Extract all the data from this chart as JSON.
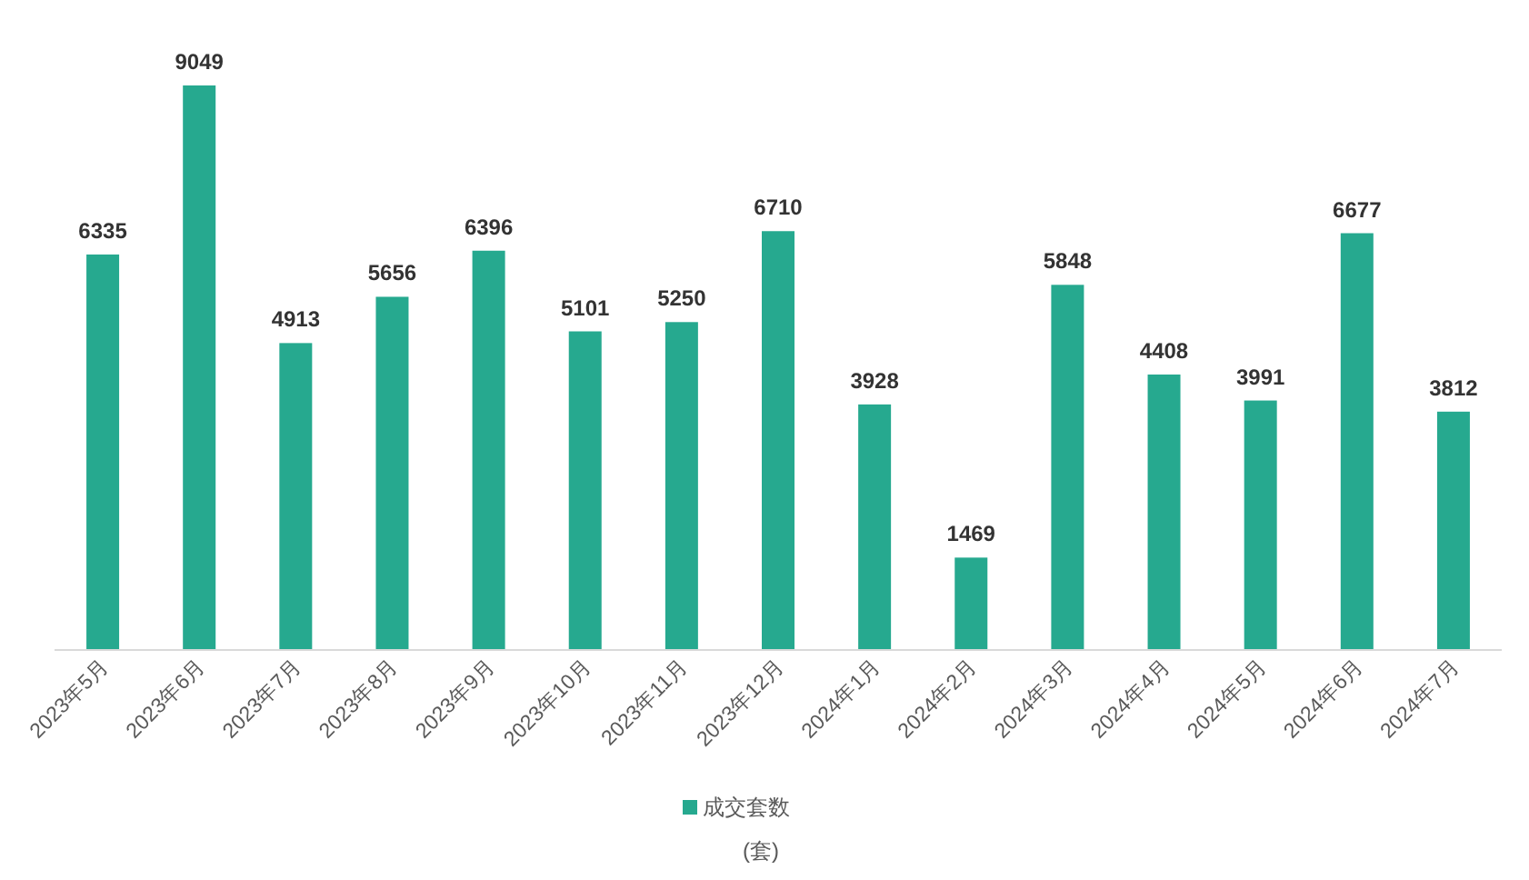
{
  "chart_data": {
    "type": "bar",
    "categories": [
      "2023年5月",
      "2023年6月",
      "2023年7月",
      "2023年8月",
      "2023年9月",
      "2023年10月",
      "2023年11月",
      "2023年12月",
      "2024年1月",
      "2024年2月",
      "2024年3月",
      "2024年4月",
      "2024年5月",
      "2024年6月",
      "2024年7月"
    ],
    "series": [
      {
        "name": "成交套数",
        "color": "#26a98f",
        "values": [
          6335,
          9049,
          4913,
          5656,
          6396,
          5101,
          5250,
          6710,
          3928,
          1469,
          5848,
          4408,
          3991,
          6677,
          3812
        ]
      }
    ],
    "data_labels": true,
    "legend": "bottom",
    "annotations": [
      "(套)"
    ]
  }
}
